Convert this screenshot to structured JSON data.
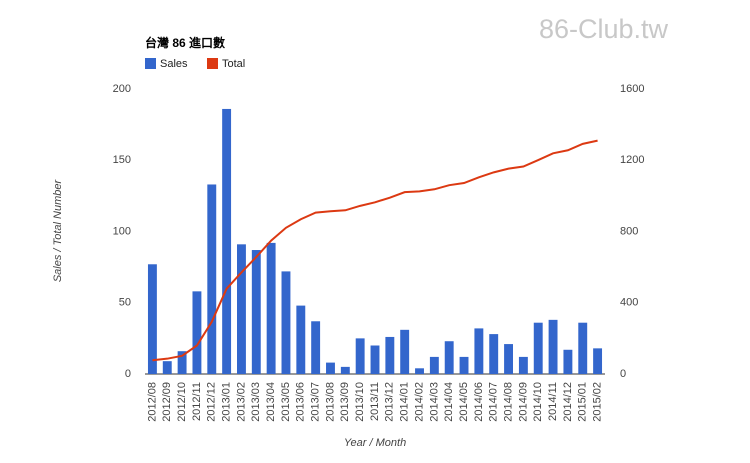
{
  "chart_data": {
    "type": "bar-line",
    "title": "台灣 86 進口數",
    "watermark": "86-Club.tw",
    "y_label": "Sales / Total Number",
    "x_label": "Year / Month",
    "categories": [
      "2012/08",
      "2012/09",
      "2012/10",
      "2012/11",
      "2012/12",
      "2013/01",
      "2013/02",
      "2013/03",
      "2013/04",
      "2013/05",
      "2013/06",
      "2013/07",
      "2013/08",
      "2013/09",
      "2013/10",
      "2013/11",
      "2013/12",
      "2014/01",
      "2014/02",
      "2014/03",
      "2014/04",
      "2014/05",
      "2014/06",
      "2014/07",
      "2014/08",
      "2014/09",
      "2014/10",
      "2014/11",
      "2014/12",
      "2015/01",
      "2015/02"
    ],
    "series": [
      {
        "name": "Sales",
        "type": "bar",
        "color": "#3366cc",
        "values": [
          77,
          9,
          16,
          58,
          133,
          186,
          91,
          87,
          92,
          72,
          48,
          37,
          8,
          5,
          25,
          20,
          26,
          31,
          4,
          12,
          23,
          12,
          32,
          28,
          21,
          12,
          36,
          38,
          17,
          36,
          18
        ]
      },
      {
        "name": "Total",
        "type": "line",
        "axis": "y2",
        "color": "#dc3912",
        "values": [
          77,
          86,
          102,
          160,
          293,
          479,
          570,
          657,
          749,
          821,
          869,
          906,
          914,
          919,
          944,
          964,
          990,
          1021,
          1025,
          1037,
          1060,
          1072,
          1104,
          1132,
          1153,
          1165,
          1201,
          1239,
          1256,
          1292,
          1310
        ]
      }
    ],
    "ylim": [
      0,
      200
    ],
    "yticks": [
      0,
      50,
      100,
      150,
      200
    ],
    "y2lim": [
      0,
      1600
    ],
    "y2ticks": [
      0,
      400,
      800,
      1200,
      1600
    ],
    "grid": false,
    "legend": "top-left"
  }
}
